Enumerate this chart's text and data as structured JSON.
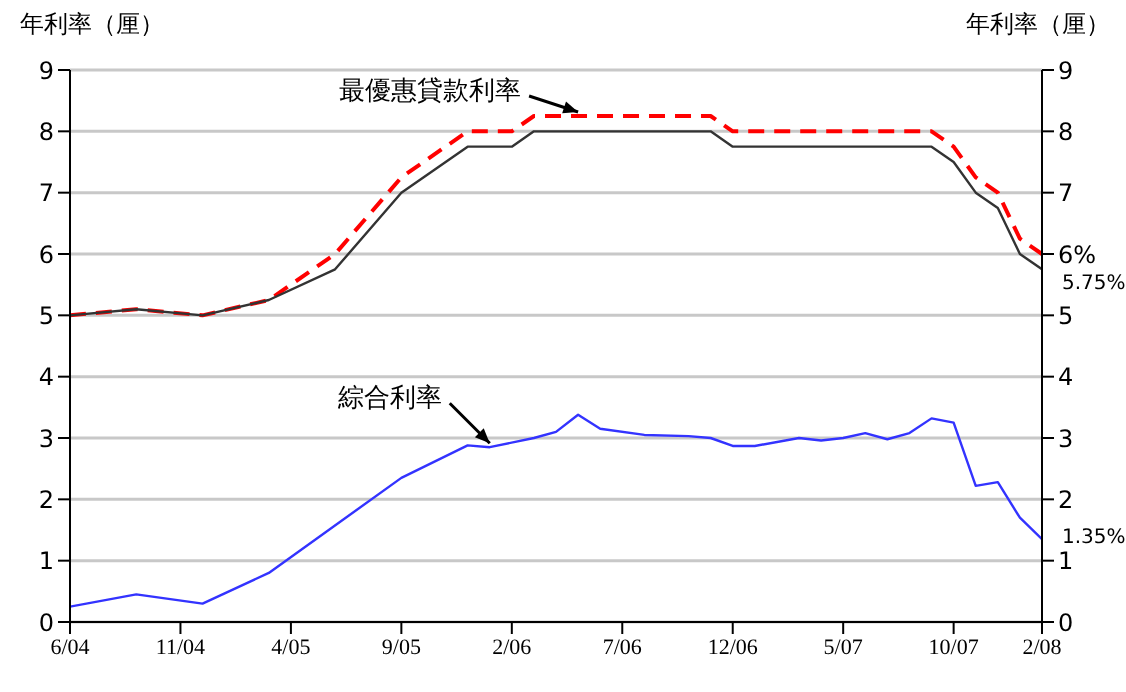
{
  "chart_data": {
    "type": "line",
    "ylabel": "年利率（厘）",
    "y2label": "年利率（厘）",
    "xlim": [
      "2004-06",
      "2008-02"
    ],
    "xticks": [
      {
        "value": "2004-06",
        "label": "6/04"
      },
      {
        "value": "2004-11",
        "label": "11/04"
      },
      {
        "value": "2005-04",
        "label": "4/05"
      },
      {
        "value": "2005-09",
        "label": "9/05"
      },
      {
        "value": "2006-02",
        "label": "2/06"
      },
      {
        "value": "2006-07",
        "label": "7/06"
      },
      {
        "value": "2006-12",
        "label": "12/06"
      },
      {
        "value": "2007-05",
        "label": "5/07"
      },
      {
        "value": "2007-10",
        "label": "10/07"
      },
      {
        "value": "2008-02",
        "label": "2/08"
      }
    ],
    "ylim": [
      0,
      9
    ],
    "yticks": [
      0,
      1,
      2,
      3,
      4,
      5,
      6,
      7,
      8,
      9
    ],
    "y2lim": [
      0,
      9
    ],
    "y2ticks": [
      0,
      1,
      2,
      3,
      4,
      5,
      {
        "value": 6,
        "label": "6%"
      },
      7,
      8,
      9
    ],
    "grid": "y",
    "marker": "none",
    "series": [
      {
        "color": "#ff0000",
        "line_style": "dashed",
        "x": [
          "2004-06",
          "2004-09",
          "2004-12",
          "2005-03",
          "2005-06",
          "2005-09",
          "2005-12",
          "2006-02",
          "2006-03",
          "2006-11",
          "2006-12",
          "2007-09",
          "2007-10",
          "2007-11",
          "2007-12",
          "2008-01",
          "2008-02"
        ],
        "values": [
          5.0,
          5.1,
          5.0,
          5.25,
          6.0,
          7.25,
          8.0,
          8.0,
          8.25,
          8.25,
          8.0,
          8.0,
          7.75,
          7.25,
          7.0,
          6.25,
          6.0
        ]
      },
      {
        "color": "#333333",
        "line_style": "solid",
        "x": [
          "2004-06",
          "2004-09",
          "2004-12",
          "2005-03",
          "2005-06",
          "2005-09",
          "2005-12",
          "2006-02",
          "2006-03",
          "2006-11",
          "2006-12",
          "2007-09",
          "2007-10",
          "2007-11",
          "2007-12",
          "2008-01",
          "2008-02"
        ],
        "values": [
          5.0,
          5.1,
          5.0,
          5.25,
          5.75,
          7.0,
          7.75,
          7.75,
          8.0,
          8.0,
          7.75,
          7.75,
          7.5,
          7.0,
          6.75,
          6.0,
          5.75
        ]
      },
      {
        "color": "#3333ff",
        "line_style": "solid",
        "x": [
          "2004-06",
          "2004-09",
          "2004-12",
          "2005-03",
          "2005-09",
          "2005-12",
          "2006-01",
          "2006-03",
          "2006-04",
          "2006-05",
          "2006-06",
          "2006-08",
          "2006-10",
          "2006-11",
          "2006-12",
          "2007-01",
          "2007-03",
          "2007-04",
          "2007-05",
          "2007-06",
          "2007-07",
          "2007-08",
          "2007-09",
          "2007-10",
          "2007-11",
          "2007-12",
          "2008-01",
          "2008-02"
        ],
        "values": [
          0.25,
          0.45,
          0.3,
          0.8,
          2.35,
          2.88,
          2.85,
          3.0,
          3.1,
          3.38,
          3.15,
          3.05,
          3.03,
          3.0,
          2.87,
          2.87,
          3.0,
          2.96,
          3.0,
          3.08,
          2.98,
          3.08,
          3.32,
          3.25,
          2.22,
          2.28,
          1.7,
          1.35
        ]
      }
    ],
    "annotations": [
      {
        "text": "最優惠貸款利率",
        "x": "2006-05",
        "y": 8.25
      },
      {
        "text": "綜合利率",
        "x": "2006-01",
        "y": 2.85
      },
      {
        "text": "5.75%",
        "x": "2008-02",
        "y": 5.75
      },
      {
        "text": "1.35%",
        "x": "2008-02",
        "y": 1.35
      }
    ]
  }
}
